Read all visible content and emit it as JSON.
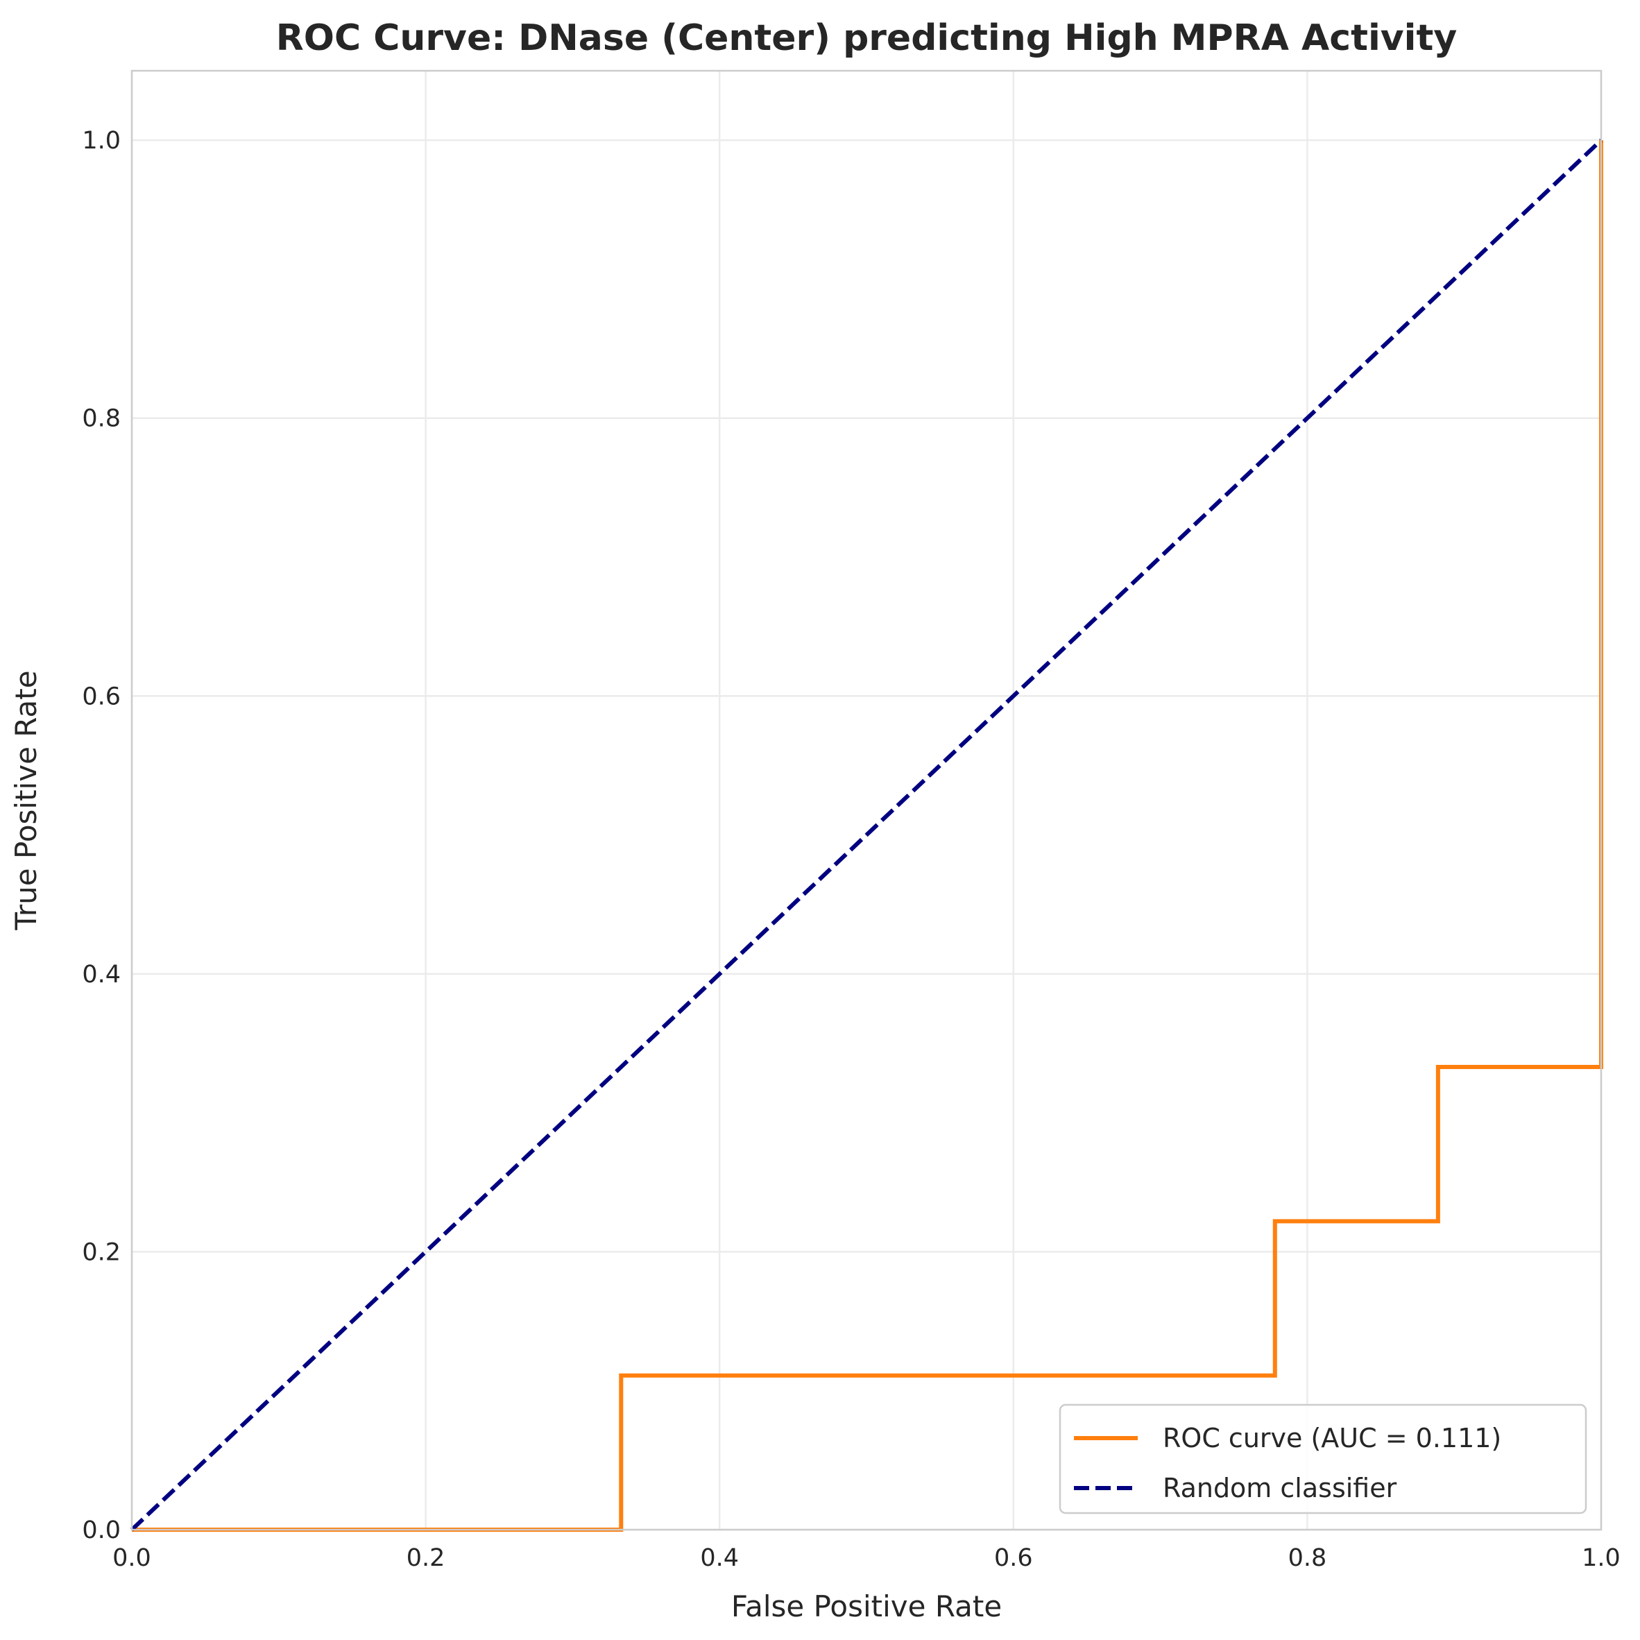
{
  "chart_data": {
    "type": "line",
    "title": "ROC Curve: DNase (Center) predicting High MPRA Activity",
    "xlabel": "False Positive Rate",
    "ylabel": "True Positive Rate",
    "xlim": [
      0.0,
      1.0
    ],
    "ylim": [
      0.0,
      1.05
    ],
    "xticks": [
      0.0,
      0.2,
      0.4,
      0.6,
      0.8,
      1.0
    ],
    "yticks": [
      0.0,
      0.2,
      0.4,
      0.6,
      0.8,
      1.0
    ],
    "xtick_labels": [
      "0.0",
      "0.2",
      "0.4",
      "0.6",
      "0.8",
      "1.0"
    ],
    "ytick_labels": [
      "0.0",
      "0.2",
      "0.4",
      "0.6",
      "0.8",
      "1.0"
    ],
    "grid": true,
    "legend_position": "lower-right",
    "series": [
      {
        "name": "ROC curve (AUC = 0.111)",
        "color": "#ff7f0e",
        "style": "solid",
        "x": [
          0.0,
          0.333,
          0.333,
          0.778,
          0.778,
          0.889,
          0.889,
          1.0,
          1.0
        ],
        "y": [
          0.0,
          0.0,
          0.111,
          0.111,
          0.222,
          0.222,
          0.333,
          0.333,
          1.0
        ]
      },
      {
        "name": "Random classifier",
        "color": "#000080",
        "style": "dashed",
        "x": [
          0.0,
          1.0
        ],
        "y": [
          0.0,
          1.0
        ]
      }
    ]
  }
}
